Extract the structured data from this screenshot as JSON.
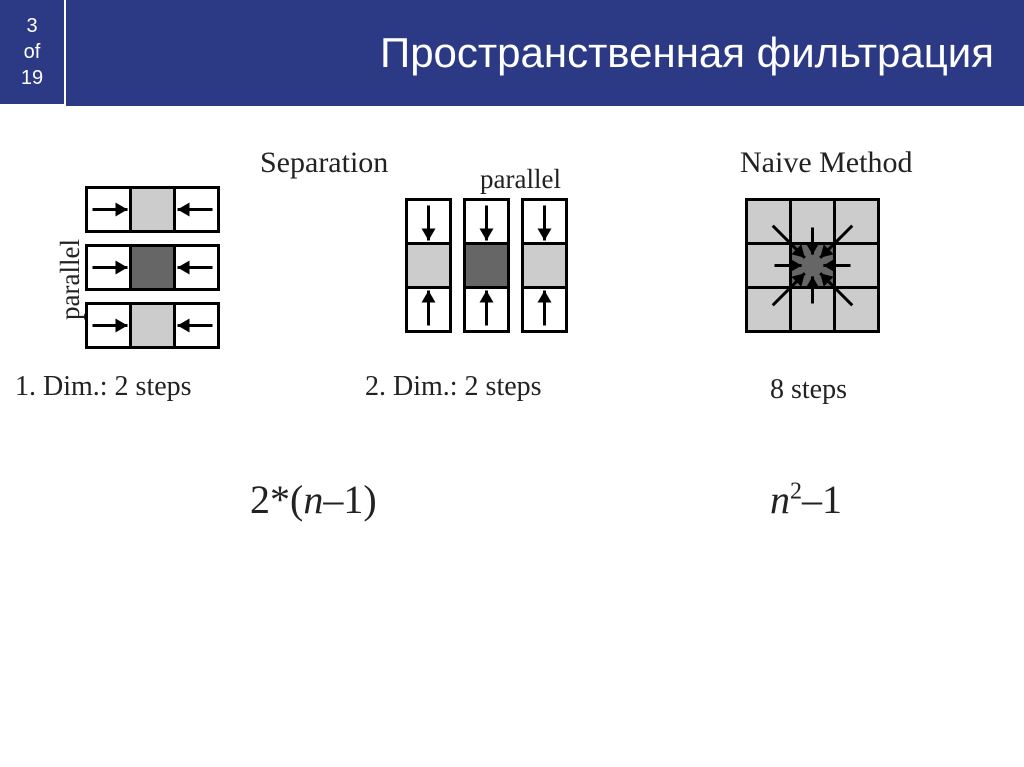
{
  "header": {
    "page_current": "3",
    "page_of": "of",
    "page_total": "19",
    "title": "Пространственная фильтрация"
  },
  "labels": {
    "separation": "Separation",
    "parallel_h": "parallel",
    "parallel_v": "parallel",
    "naive": "Naive Method",
    "dim1": "1. Dim.: 2 steps",
    "dim2": "2. Dim.: 2 steps",
    "steps8": "8 steps",
    "formula_left": "2*(n–1)",
    "formula_right": "n²–1"
  },
  "colors": {
    "header_bg": "#2c3984",
    "header_text": "#ffffff",
    "cell_light": "#cccccc",
    "cell_dark": "#666666",
    "stroke": "#000000",
    "bg": "#ffffff"
  },
  "diagram": {
    "cell_size": 44,
    "stroke_width": 3,
    "sep_h": {
      "rows": 3,
      "cols": 3,
      "center_col": 1,
      "center_color": "#666666",
      "outer_color": "#cccccc",
      "row_gap": 14
    },
    "sep_v": {
      "rows": 3,
      "cols": 3,
      "center_row": 1,
      "center_color": "#666666",
      "outer_color": "#cccccc",
      "col_gap": 14
    },
    "naive": {
      "size": 3,
      "center_color": "#666666",
      "outer_color": "#cccccc"
    }
  }
}
